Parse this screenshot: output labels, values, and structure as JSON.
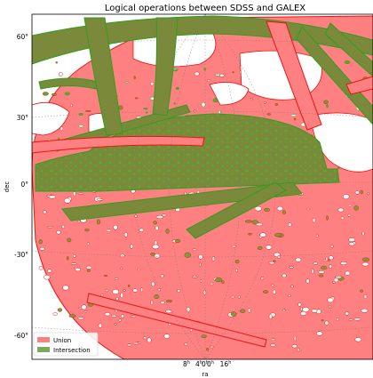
{
  "chart_data": {
    "type": "map",
    "projection": "mollweide",
    "title": "Logical operations between SDSS and GALEX",
    "xlabel": "ra",
    "ylabel": "dec",
    "y_ticks": [
      {
        "value": 60,
        "label": "60°"
      },
      {
        "value": 30,
        "label": "30°"
      },
      {
        "value": 0,
        "label": "0°"
      },
      {
        "value": -30,
        "label": "-30°"
      },
      {
        "value": -60,
        "label": "-60°"
      }
    ],
    "x_ticks": [
      {
        "label": "8",
        "sup": "h"
      },
      {
        "label": "4",
        "sup": "h"
      },
      {
        "label": "0",
        "sup": "h"
      },
      {
        "label": "0",
        "sup": "h"
      },
      {
        "label": "16",
        "sup": "h"
      }
    ],
    "grid": true,
    "legend": {
      "placement": "lower-left",
      "entries": [
        {
          "name": "Union",
          "color": "#ff7f7f"
        },
        {
          "name": "Intersection",
          "color": "#7aa85c"
        }
      ]
    },
    "colors": {
      "union_fill": "#ff8080",
      "union_edge": "#ee1111",
      "intersection_fill": "#7a8a3a",
      "intersection_edge": "#2e9e1e"
    }
  }
}
